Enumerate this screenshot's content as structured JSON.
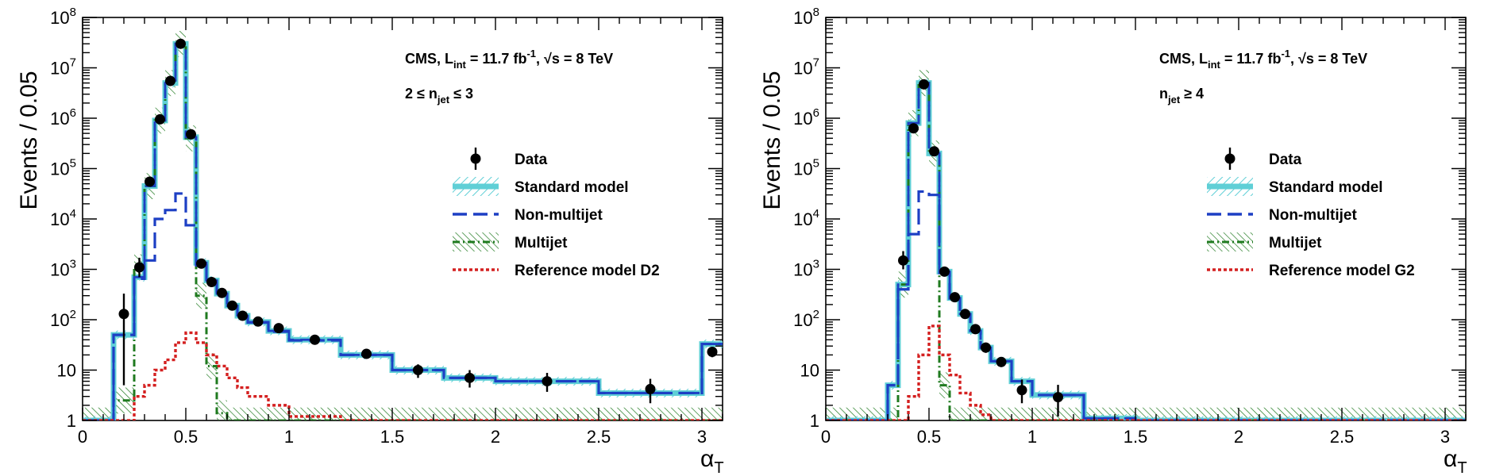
{
  "chart_data": [
    {
      "type": "line",
      "panel": "left",
      "xlabel_main": "α",
      "xlabel_sub": "T",
      "ylabel": "Events / 0.05",
      "xlim": [
        0,
        3.1
      ],
      "ylim": [
        1,
        100000000
      ],
      "log_y": true,
      "x_ticks": [
        "0",
        "0.5",
        "1",
        "1.5",
        "2",
        "2.5",
        "3"
      ],
      "annotation_line1": {
        "pre": "CMS, L",
        "sub": "int",
        "mid": " = 11.7 fb",
        "sup": "-1",
        "sep": ", ",
        "root": "√s",
        "post": " = 8 TeV"
      },
      "annotation_line2": {
        "pre": "2 ≤ n",
        "sub": "jet",
        "post": " ≤ 3"
      },
      "legend": [
        "Data",
        "Standard model",
        "Non-multijet",
        "Multijet",
        "Reference model D2"
      ],
      "legend_position": "right",
      "colors": {
        "sm_fill": "#5fcfd6",
        "sm_line": "#1d3fc4",
        "nonmultijet": "#1d3fc4",
        "multijet": "#1f7a1f",
        "reference": "#d42020",
        "data": "#000000"
      },
      "series": [
        {
          "name": "Data",
          "kind": "points",
          "points": [
            {
              "x": 0.2,
              "y": 130,
              "err_lo": 125,
              "err_hi": 200
            },
            {
              "x": 0.275,
              "y": 1100,
              "err_lo": 400,
              "err_hi": 600
            },
            {
              "x": 0.325,
              "y": 55000,
              "err_lo": 5000,
              "err_hi": 5000
            },
            {
              "x": 0.375,
              "y": 950000,
              "err_lo": 50000,
              "err_hi": 50000
            },
            {
              "x": 0.425,
              "y": 5500000,
              "err_lo": 200000,
              "err_hi": 200000
            },
            {
              "x": 0.475,
              "y": 30000000,
              "err_lo": 1000000,
              "err_hi": 1000000
            },
            {
              "x": 0.525,
              "y": 480000,
              "err_lo": 30000,
              "err_hi": 30000
            },
            {
              "x": 0.575,
              "y": 1300,
              "err_lo": 100,
              "err_hi": 100
            },
            {
              "x": 0.625,
              "y": 560,
              "err_lo": 60,
              "err_hi": 60
            },
            {
              "x": 0.675,
              "y": 340,
              "err_lo": 40,
              "err_hi": 40
            },
            {
              "x": 0.725,
              "y": 190,
              "err_lo": 30,
              "err_hi": 30
            },
            {
              "x": 0.775,
              "y": 120,
              "err_lo": 20,
              "err_hi": 20
            },
            {
              "x": 0.85,
              "y": 92,
              "err_lo": 12,
              "err_hi": 12
            },
            {
              "x": 0.95,
              "y": 68,
              "err_lo": 10,
              "err_hi": 10
            },
            {
              "x": 1.125,
              "y": 40,
              "err_lo": 6,
              "err_hi": 6
            },
            {
              "x": 1.375,
              "y": 21,
              "err_lo": 4,
              "err_hi": 4
            },
            {
              "x": 1.625,
              "y": 10,
              "err_lo": 3,
              "err_hi": 3
            },
            {
              "x": 1.875,
              "y": 7,
              "err_lo": 2.5,
              "err_hi": 3
            },
            {
              "x": 2.25,
              "y": 6,
              "err_lo": 2.3,
              "err_hi": 2.8
            },
            {
              "x": 2.75,
              "y": 4.2,
              "err_lo": 2,
              "err_hi": 2.5
            },
            {
              "x": 3.05,
              "y": 23,
              "err_lo": 5,
              "err_hi": 5
            }
          ]
        },
        {
          "name": "Standard model",
          "kind": "step",
          "edges": [
            0,
            0.15,
            0.25,
            0.3,
            0.35,
            0.4,
            0.45,
            0.5,
            0.55,
            0.6,
            0.65,
            0.7,
            0.75,
            0.8,
            0.9,
            1.0,
            1.25,
            1.5,
            1.75,
            2.0,
            2.5,
            3.0,
            3.1
          ],
          "values": [
            1,
            50,
            700,
            45000,
            900000,
            5000000,
            30000000,
            420000,
            1350,
            600,
            330,
            190,
            120,
            90,
            60,
            40,
            20,
            10,
            7,
            6,
            3.5,
            33
          ]
        },
        {
          "name": "Non-multijet",
          "kind": "step",
          "edges": [
            0,
            0.15,
            0.25,
            0.3,
            0.35,
            0.4,
            0.45,
            0.5,
            0.55,
            0.6,
            0.65,
            0.7,
            0.75,
            0.8,
            0.9,
            1.0,
            1.25,
            1.5,
            1.75,
            2.0,
            2.5,
            3.0,
            3.1
          ],
          "values": [
            1,
            50,
            650,
            1500,
            10000,
            15000,
            32000,
            7500,
            1200,
            580,
            320,
            185,
            115,
            88,
            58,
            39,
            20,
            10,
            7,
            6,
            3.5,
            33
          ]
        },
        {
          "name": "Multijet",
          "kind": "step",
          "edges": [
            0,
            0.15,
            0.25,
            0.3,
            0.35,
            0.4,
            0.45,
            0.5,
            0.55,
            0.6,
            0.65,
            0.7,
            3.1
          ],
          "values": [
            1,
            2.5,
            1100,
            45000,
            900000,
            5000000,
            30000000,
            400000,
            300,
            12,
            1.4,
            1
          ]
        },
        {
          "name": "Reference model D2",
          "kind": "step",
          "edges": [
            0,
            0.25,
            0.3,
            0.35,
            0.4,
            0.45,
            0.5,
            0.55,
            0.6,
            0.65,
            0.7,
            0.75,
            0.8,
            0.9,
            1.0,
            1.25,
            3.1
          ],
          "values": [
            1,
            3,
            5,
            10,
            16,
            35,
            55,
            35,
            20,
            12,
            7,
            4.5,
            3,
            2,
            1.2,
            1,
            1
          ]
        }
      ]
    },
    {
      "type": "line",
      "panel": "right",
      "xlabel_main": "α",
      "xlabel_sub": "T",
      "ylabel": "Events / 0.05",
      "xlim": [
        0,
        3.1
      ],
      "ylim": [
        1,
        100000000
      ],
      "log_y": true,
      "x_ticks": [
        "0",
        "0.5",
        "1",
        "1.5",
        "2",
        "2.5",
        "3"
      ],
      "annotation_line1": {
        "pre": "CMS, L",
        "sub": "int",
        "mid": " = 11.7 fb",
        "sup": "-1",
        "sep": ", ",
        "root": "√s",
        "post": " = 8 TeV"
      },
      "annotation_line2": {
        "pre": "n",
        "sub": "jet",
        "post": " ≥ 4"
      },
      "legend": [
        "Data",
        "Standard model",
        "Non-multijet",
        "Multijet",
        "Reference model G2"
      ],
      "legend_position": "right",
      "colors": {
        "sm_fill": "#5fcfd6",
        "sm_line": "#1d3fc4",
        "nonmultijet": "#1d3fc4",
        "multijet": "#1f7a1f",
        "reference": "#d42020",
        "data": "#000000"
      },
      "series": [
        {
          "name": "Data",
          "kind": "points",
          "points": [
            {
              "x": 0.375,
              "y": 1500,
              "err_lo": 500,
              "err_hi": 800
            },
            {
              "x": 0.425,
              "y": 630000,
              "err_lo": 40000,
              "err_hi": 40000
            },
            {
              "x": 0.475,
              "y": 4700000,
              "err_lo": 200000,
              "err_hi": 200000
            },
            {
              "x": 0.525,
              "y": 220000,
              "err_lo": 20000,
              "err_hi": 20000
            },
            {
              "x": 0.575,
              "y": 900,
              "err_lo": 80,
              "err_hi": 80
            },
            {
              "x": 0.625,
              "y": 280,
              "err_lo": 30,
              "err_hi": 30
            },
            {
              "x": 0.675,
              "y": 130,
              "err_lo": 20,
              "err_hi": 20
            },
            {
              "x": 0.725,
              "y": 65,
              "err_lo": 12,
              "err_hi": 12
            },
            {
              "x": 0.775,
              "y": 28,
              "err_lo": 6,
              "err_hi": 6
            },
            {
              "x": 0.85,
              "y": 14.5,
              "err_lo": 3,
              "err_hi": 3
            },
            {
              "x": 0.95,
              "y": 4,
              "err_lo": 1.8,
              "err_hi": 2.5
            },
            {
              "x": 1.125,
              "y": 2.9,
              "err_lo": 1.7,
              "err_hi": 2.2
            }
          ]
        },
        {
          "name": "Standard model",
          "kind": "step",
          "edges": [
            0,
            0.3,
            0.35,
            0.4,
            0.45,
            0.5,
            0.55,
            0.6,
            0.65,
            0.7,
            0.75,
            0.8,
            0.9,
            1.0,
            1.25,
            1.5,
            3.1
          ],
          "values": [
            1,
            5,
            500,
            800000,
            5000000,
            200000,
            900,
            270,
            130,
            60,
            28,
            15,
            6,
            3.2,
            1.1,
            1
          ]
        },
        {
          "name": "Non-multijet",
          "kind": "step",
          "edges": [
            0,
            0.3,
            0.35,
            0.4,
            0.45,
            0.5,
            0.55,
            0.6,
            0.65,
            0.7,
            0.75,
            0.8,
            0.9,
            1.0,
            1.25,
            1.5,
            3.1
          ],
          "values": [
            1,
            5,
            400,
            5000,
            35000,
            30000,
            850,
            265,
            128,
            60,
            28,
            15,
            6,
            3.2,
            1.1,
            1
          ]
        },
        {
          "name": "Multijet",
          "kind": "step",
          "edges": [
            0,
            0.35,
            0.4,
            0.45,
            0.5,
            0.55,
            0.6,
            3.1
          ],
          "values": [
            1,
            500,
            800000,
            5000000,
            200000,
            5,
            1
          ]
        },
        {
          "name": "Reference model G2",
          "kind": "step",
          "edges": [
            0,
            0.4,
            0.45,
            0.5,
            0.55,
            0.6,
            0.65,
            0.7,
            0.75,
            0.8,
            3.1
          ],
          "values": [
            1,
            3,
            20,
            75,
            20,
            8,
            3.5,
            2,
            1.3,
            1
          ]
        }
      ]
    }
  ]
}
